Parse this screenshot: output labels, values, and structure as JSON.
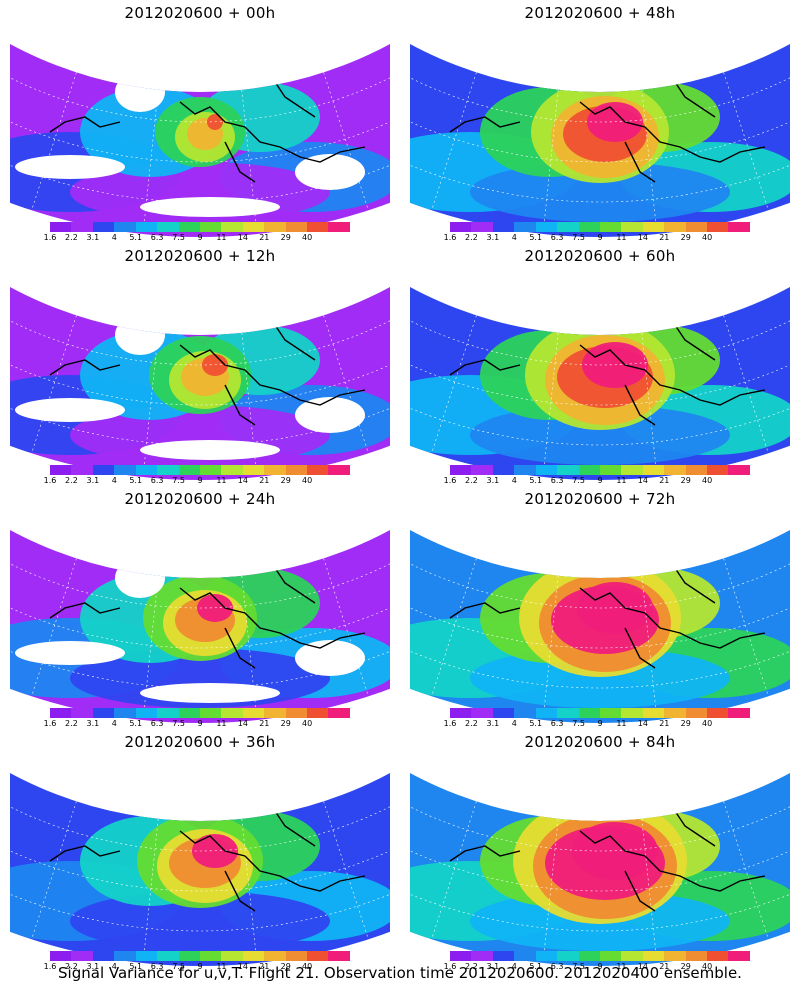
{
  "caption": "Signal Variance for u,v,T. Flight 21. Observation time 2012020600. 2012020400 ensemble.",
  "colorbar": {
    "colors": [
      "#8c1eef",
      "#a02cf5",
      "#2e46f0",
      "#1f86f0",
      "#10b4f4",
      "#14d2c8",
      "#2cd25a",
      "#64dc32",
      "#b4e632",
      "#e6dc32",
      "#f0b432",
      "#f08c32",
      "#f05032",
      "#f01e7a"
    ],
    "labels": [
      "1.6",
      "2.2",
      "3.1",
      "4",
      "5.1",
      "6.3",
      "7.5",
      "9",
      "11",
      "14",
      "21",
      "29",
      "40"
    ]
  },
  "panels": [
    {
      "title": "2012020600 + 00h",
      "level": 0
    },
    {
      "title": "2012020600 + 48h",
      "level": 4
    },
    {
      "title": "2012020600 + 12h",
      "level": 1
    },
    {
      "title": "2012020600 + 60h",
      "level": 5
    },
    {
      "title": "2012020600 + 24h",
      "level": 2
    },
    {
      "title": "2012020600 + 72h",
      "level": 6
    },
    {
      "title": "2012020600 + 36h",
      "level": 3
    },
    {
      "title": "2012020600 + 84h",
      "level": 7
    }
  ]
}
